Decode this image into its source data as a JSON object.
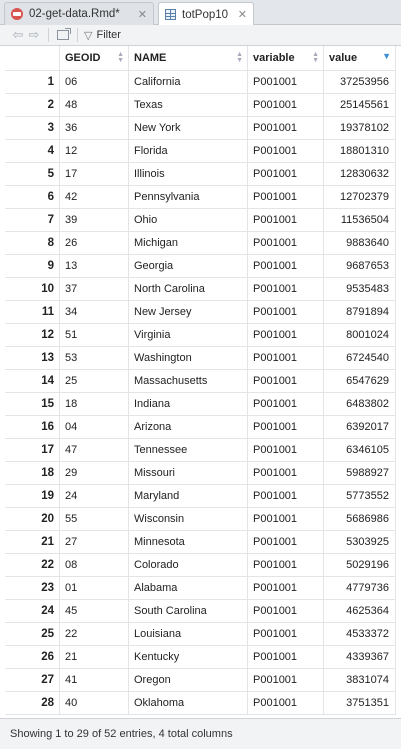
{
  "tabs": [
    {
      "label": "02-get-data.Rmd*",
      "icon": "r-markdown-icon",
      "active": false
    },
    {
      "label": "totPop10",
      "icon": "table-icon",
      "active": true
    }
  ],
  "toolbar": {
    "filter_label": "Filter"
  },
  "table": {
    "columns": [
      "",
      "GEOID",
      "NAME",
      "variable",
      "value"
    ],
    "sorted_column": "value",
    "rows": [
      {
        "n": "1",
        "geoid": "06",
        "name": "California",
        "variable": "P001001",
        "value": "37253956"
      },
      {
        "n": "2",
        "geoid": "48",
        "name": "Texas",
        "variable": "P001001",
        "value": "25145561"
      },
      {
        "n": "3",
        "geoid": "36",
        "name": "New York",
        "variable": "P001001",
        "value": "19378102"
      },
      {
        "n": "4",
        "geoid": "12",
        "name": "Florida",
        "variable": "P001001",
        "value": "18801310"
      },
      {
        "n": "5",
        "geoid": "17",
        "name": "Illinois",
        "variable": "P001001",
        "value": "12830632"
      },
      {
        "n": "6",
        "geoid": "42",
        "name": "Pennsylvania",
        "variable": "P001001",
        "value": "12702379"
      },
      {
        "n": "7",
        "geoid": "39",
        "name": "Ohio",
        "variable": "P001001",
        "value": "11536504"
      },
      {
        "n": "8",
        "geoid": "26",
        "name": "Michigan",
        "variable": "P001001",
        "value": "9883640"
      },
      {
        "n": "9",
        "geoid": "13",
        "name": "Georgia",
        "variable": "P001001",
        "value": "9687653"
      },
      {
        "n": "10",
        "geoid": "37",
        "name": "North Carolina",
        "variable": "P001001",
        "value": "9535483"
      },
      {
        "n": "11",
        "geoid": "34",
        "name": "New Jersey",
        "variable": "P001001",
        "value": "8791894"
      },
      {
        "n": "12",
        "geoid": "51",
        "name": "Virginia",
        "variable": "P001001",
        "value": "8001024"
      },
      {
        "n": "13",
        "geoid": "53",
        "name": "Washington",
        "variable": "P001001",
        "value": "6724540"
      },
      {
        "n": "14",
        "geoid": "25",
        "name": "Massachusetts",
        "variable": "P001001",
        "value": "6547629"
      },
      {
        "n": "15",
        "geoid": "18",
        "name": "Indiana",
        "variable": "P001001",
        "value": "6483802"
      },
      {
        "n": "16",
        "geoid": "04",
        "name": "Arizona",
        "variable": "P001001",
        "value": "6392017"
      },
      {
        "n": "17",
        "geoid": "47",
        "name": "Tennessee",
        "variable": "P001001",
        "value": "6346105"
      },
      {
        "n": "18",
        "geoid": "29",
        "name": "Missouri",
        "variable": "P001001",
        "value": "5988927"
      },
      {
        "n": "19",
        "geoid": "24",
        "name": "Maryland",
        "variable": "P001001",
        "value": "5773552"
      },
      {
        "n": "20",
        "geoid": "55",
        "name": "Wisconsin",
        "variable": "P001001",
        "value": "5686986"
      },
      {
        "n": "21",
        "geoid": "27",
        "name": "Minnesota",
        "variable": "P001001",
        "value": "5303925"
      },
      {
        "n": "22",
        "geoid": "08",
        "name": "Colorado",
        "variable": "P001001",
        "value": "5029196"
      },
      {
        "n": "23",
        "geoid": "01",
        "name": "Alabama",
        "variable": "P001001",
        "value": "4779736"
      },
      {
        "n": "24",
        "geoid": "45",
        "name": "South Carolina",
        "variable": "P001001",
        "value": "4625364"
      },
      {
        "n": "25",
        "geoid": "22",
        "name": "Louisiana",
        "variable": "P001001",
        "value": "4533372"
      },
      {
        "n": "26",
        "geoid": "21",
        "name": "Kentucky",
        "variable": "P001001",
        "value": "4339367"
      },
      {
        "n": "27",
        "geoid": "41",
        "name": "Oregon",
        "variable": "P001001",
        "value": "3831074"
      },
      {
        "n": "28",
        "geoid": "40",
        "name": "Oklahoma",
        "variable": "P001001",
        "value": "3751351"
      }
    ]
  },
  "footer": {
    "status": "Showing 1 to 29 of 52 entries, 4 total columns"
  },
  "colors": {
    "sort_active": "#3c8ed6",
    "r_icon": "#d9534f"
  }
}
